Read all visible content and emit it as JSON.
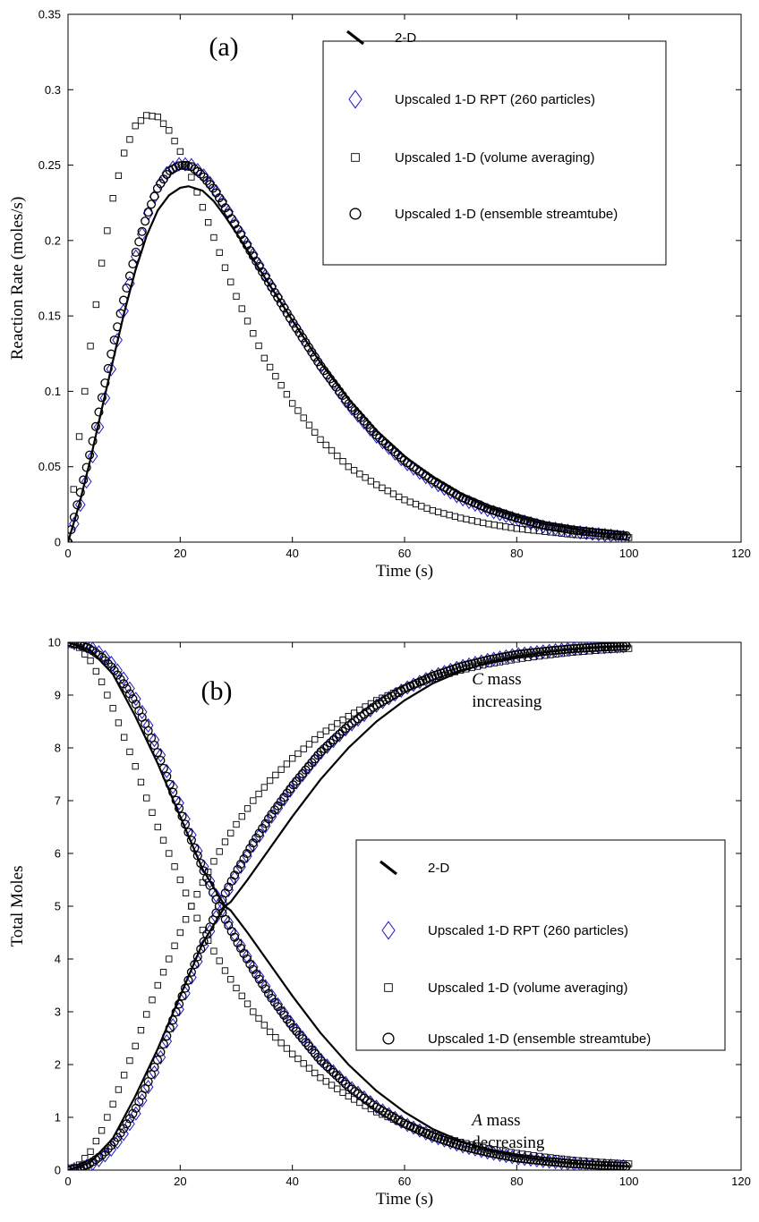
{
  "chart_data": [
    {
      "type": "line",
      "panel_label": "(a)",
      "xlabel": "Time (s)",
      "ylabel": "Reaction Rate (moles/s)",
      "xlim": [
        0,
        120
      ],
      "ylim": [
        0,
        0.35
      ],
      "xticks": [
        "0",
        "20",
        "40",
        "60",
        "80",
        "100",
        "120"
      ],
      "yticks": [
        "0",
        "0.05",
        "0.1",
        "0.15",
        "0.2",
        "0.25",
        "0.3",
        "0.35"
      ],
      "legend_position": "top-right",
      "series": [
        {
          "name": "2-D",
          "marker": "line",
          "color": "#000000",
          "x": [
            0,
            2,
            4,
            6,
            8,
            10,
            12,
            14,
            16,
            18,
            20,
            21.5,
            24,
            26,
            28,
            30,
            35,
            40,
            45,
            50,
            55,
            60,
            65,
            70,
            75,
            80,
            85,
            90,
            95,
            100
          ],
          "y": [
            0,
            0.025,
            0.055,
            0.088,
            0.12,
            0.152,
            0.18,
            0.203,
            0.22,
            0.23,
            0.235,
            0.236,
            0.233,
            0.226,
            0.216,
            0.205,
            0.176,
            0.147,
            0.119,
            0.095,
            0.074,
            0.057,
            0.043,
            0.032,
            0.023,
            0.017,
            0.012,
            0.009,
            0.006,
            0.005
          ]
        },
        {
          "name": "Upscaled 1-D RPT (260 particles)",
          "marker": "diamond",
          "color": "#1a1acc",
          "x": [
            0,
            2,
            4,
            6,
            8,
            10,
            12,
            14,
            16,
            18,
            20,
            22,
            24,
            26,
            28,
            30,
            35,
            40,
            45,
            50,
            55,
            60,
            65,
            70,
            75,
            80,
            85,
            90,
            95,
            100
          ],
          "y": [
            0,
            0.022,
            0.05,
            0.085,
            0.12,
            0.155,
            0.188,
            0.215,
            0.235,
            0.247,
            0.251,
            0.25,
            0.244,
            0.235,
            0.223,
            0.21,
            0.178,
            0.146,
            0.117,
            0.091,
            0.07,
            0.053,
            0.04,
            0.029,
            0.021,
            0.015,
            0.01,
            0.007,
            0.005,
            0.003
          ]
        },
        {
          "name": "Upscaled 1-D (volume averaging)",
          "marker": "square",
          "color": "#000000",
          "x": [
            0,
            2,
            4,
            6,
            8,
            10,
            12,
            14,
            16,
            18,
            20,
            22,
            24,
            26,
            28,
            30,
            35,
            40,
            45,
            50,
            55,
            60,
            65,
            70,
            75,
            80,
            85,
            90,
            95,
            100
          ],
          "y": [
            0,
            0.07,
            0.13,
            0.185,
            0.228,
            0.258,
            0.276,
            0.283,
            0.282,
            0.273,
            0.259,
            0.242,
            0.222,
            0.202,
            0.182,
            0.163,
            0.122,
            0.092,
            0.068,
            0.05,
            0.038,
            0.028,
            0.021,
            0.016,
            0.012,
            0.009,
            0.007,
            0.005,
            0.004,
            0.003
          ]
        },
        {
          "name": "Upscaled 1-D (ensemble streamtube)",
          "marker": "circle",
          "color": "#000000",
          "x": [
            0,
            2,
            4,
            6,
            8,
            10,
            12,
            14,
            16,
            18,
            20,
            22,
            24,
            26,
            28,
            30,
            35,
            40,
            45,
            50,
            55,
            60,
            65,
            70,
            75,
            80,
            85,
            90,
            95,
            100
          ],
          "y": [
            0,
            0.03,
            0.06,
            0.095,
            0.13,
            0.162,
            0.191,
            0.216,
            0.235,
            0.246,
            0.25,
            0.249,
            0.243,
            0.234,
            0.222,
            0.209,
            0.177,
            0.146,
            0.117,
            0.092,
            0.071,
            0.054,
            0.041,
            0.03,
            0.022,
            0.016,
            0.011,
            0.008,
            0.006,
            0.004
          ]
        }
      ]
    },
    {
      "type": "line",
      "panel_label": "(b)",
      "xlabel": "Time (s)",
      "ylabel": "Total Moles",
      "xlim": [
        0,
        120
      ],
      "ylim": [
        0,
        10
      ],
      "xticks": [
        "0",
        "20",
        "40",
        "60",
        "80",
        "100",
        "120"
      ],
      "yticks": [
        "0",
        "1",
        "2",
        "3",
        "4",
        "5",
        "6",
        "7",
        "8",
        "9",
        "10"
      ],
      "legend_position": "center-right",
      "annotations": [
        {
          "var": "C",
          "line1_rest": " mass",
          "line2": "increasing",
          "at": [
            72,
            9.2
          ]
        },
        {
          "var": "A",
          "line1_rest": " mass",
          "line2": "decreasing",
          "at": [
            72,
            0.85
          ]
        }
      ],
      "series": [
        {
          "name": "2-D",
          "marker": "line",
          "color": "#000000",
          "group": "decreasing",
          "x": [
            0,
            4,
            8,
            12,
            16,
            20,
            24,
            28,
            29,
            32,
            36,
            40,
            45,
            50,
            55,
            60,
            65,
            70,
            75,
            80,
            85,
            90,
            95,
            100
          ],
          "y": [
            10,
            9.85,
            9.4,
            8.6,
            7.7,
            6.7,
            5.7,
            5.0,
            4.92,
            4.5,
            3.9,
            3.3,
            2.6,
            2.0,
            1.5,
            1.1,
            0.78,
            0.55,
            0.38,
            0.27,
            0.19,
            0.13,
            0.09,
            0.07
          ]
        },
        {
          "name": "2-D",
          "marker": "line",
          "color": "#000000",
          "group": "increasing",
          "x": [
            0,
            4,
            8,
            12,
            16,
            20,
            24,
            28,
            29,
            32,
            36,
            40,
            45,
            50,
            55,
            60,
            65,
            70,
            75,
            80,
            85,
            90,
            95,
            100
          ],
          "y": [
            0,
            0.15,
            0.6,
            1.4,
            2.3,
            3.3,
            4.3,
            5.0,
            5.08,
            5.5,
            6.1,
            6.7,
            7.4,
            8.0,
            8.5,
            8.9,
            9.22,
            9.45,
            9.62,
            9.73,
            9.81,
            9.87,
            9.91,
            9.93
          ]
        },
        {
          "name": "Upscaled 1-D RPT (260 particles)",
          "marker": "diamond",
          "color": "#1a1acc",
          "group": "decreasing",
          "x": [
            0,
            2,
            4,
            6,
            8,
            10,
            12,
            14,
            16,
            18,
            20,
            22,
            24,
            26,
            28,
            30,
            33,
            36,
            40,
            45,
            50,
            55,
            60,
            65,
            70,
            75,
            80,
            85,
            90,
            95,
            100
          ],
          "y": [
            10,
            9.97,
            9.9,
            9.78,
            9.58,
            9.3,
            8.95,
            8.5,
            8.0,
            7.45,
            6.9,
            6.35,
            5.8,
            5.3,
            4.82,
            4.4,
            3.85,
            3.35,
            2.75,
            2.1,
            1.6,
            1.2,
            0.88,
            0.64,
            0.46,
            0.33,
            0.23,
            0.17,
            0.12,
            0.09,
            0.07
          ]
        },
        {
          "name": "Upscaled 1-D RPT (260 particles)",
          "marker": "diamond",
          "color": "#1a1acc",
          "group": "increasing",
          "x": [
            0,
            2,
            4,
            6,
            8,
            10,
            12,
            14,
            16,
            18,
            20,
            22,
            24,
            26,
            28,
            30,
            33,
            36,
            40,
            45,
            50,
            55,
            60,
            65,
            70,
            75,
            80,
            85,
            90,
            95,
            100
          ],
          "y": [
            0,
            0.03,
            0.1,
            0.22,
            0.42,
            0.7,
            1.05,
            1.5,
            2.0,
            2.55,
            3.1,
            3.65,
            4.2,
            4.7,
            5.18,
            5.6,
            6.15,
            6.65,
            7.25,
            7.9,
            8.4,
            8.8,
            9.12,
            9.36,
            9.54,
            9.67,
            9.77,
            9.83,
            9.88,
            9.91,
            9.93
          ]
        },
        {
          "name": "Upscaled 1-D (volume averaging)",
          "marker": "square",
          "color": "#000000",
          "group": "decreasing",
          "x": [
            0,
            2,
            4,
            6,
            8,
            10,
            12,
            14,
            16,
            18,
            20,
            22,
            24,
            26,
            28,
            30,
            33,
            36,
            40,
            45,
            50,
            55,
            60,
            65,
            70,
            75,
            80,
            85,
            90,
            95,
            100
          ],
          "y": [
            10,
            9.9,
            9.65,
            9.25,
            8.75,
            8.2,
            7.65,
            7.05,
            6.5,
            6.0,
            5.5,
            5.0,
            4.55,
            4.15,
            3.78,
            3.45,
            3.0,
            2.62,
            2.2,
            1.75,
            1.4,
            1.1,
            0.87,
            0.68,
            0.53,
            0.41,
            0.32,
            0.25,
            0.19,
            0.15,
            0.12
          ]
        },
        {
          "name": "Upscaled 1-D (volume averaging)",
          "marker": "square",
          "color": "#000000",
          "group": "increasing",
          "x": [
            0,
            2,
            4,
            6,
            8,
            10,
            12,
            14,
            16,
            18,
            20,
            22,
            24,
            26,
            28,
            30,
            33,
            36,
            40,
            45,
            50,
            55,
            60,
            65,
            70,
            75,
            80,
            85,
            90,
            95,
            100
          ],
          "y": [
            0,
            0.1,
            0.35,
            0.75,
            1.25,
            1.8,
            2.35,
            2.95,
            3.5,
            4.0,
            4.5,
            5.0,
            5.45,
            5.85,
            6.22,
            6.55,
            7.0,
            7.38,
            7.8,
            8.25,
            8.6,
            8.9,
            9.13,
            9.32,
            9.47,
            9.59,
            9.68,
            9.75,
            9.81,
            9.85,
            9.88
          ]
        },
        {
          "name": "Upscaled 1-D (ensemble streamtube)",
          "marker": "circle",
          "color": "#000000",
          "group": "decreasing",
          "x": [
            0,
            2,
            4,
            6,
            8,
            10,
            12,
            14,
            16,
            18,
            20,
            22,
            24,
            26,
            28,
            30,
            33,
            36,
            40,
            45,
            50,
            55,
            60,
            65,
            70,
            75,
            80,
            85,
            90,
            95,
            100
          ],
          "y": [
            10,
            9.96,
            9.87,
            9.72,
            9.5,
            9.2,
            8.85,
            8.4,
            7.9,
            7.35,
            6.8,
            6.25,
            5.72,
            5.22,
            4.76,
            4.35,
            3.8,
            3.3,
            2.72,
            2.08,
            1.58,
            1.19,
            0.88,
            0.64,
            0.46,
            0.33,
            0.23,
            0.17,
            0.12,
            0.09,
            0.07
          ]
        },
        {
          "name": "Upscaled 1-D (ensemble streamtube)",
          "marker": "circle",
          "color": "#000000",
          "group": "increasing",
          "x": [
            0,
            2,
            4,
            6,
            8,
            10,
            12,
            14,
            16,
            18,
            20,
            22,
            24,
            26,
            28,
            30,
            33,
            36,
            40,
            45,
            50,
            55,
            60,
            65,
            70,
            75,
            80,
            85,
            90,
            95,
            100
          ],
          "y": [
            0,
            0.04,
            0.13,
            0.28,
            0.5,
            0.8,
            1.15,
            1.6,
            2.1,
            2.65,
            3.2,
            3.75,
            4.28,
            4.78,
            5.24,
            5.65,
            6.2,
            6.7,
            7.28,
            7.92,
            8.42,
            8.81,
            9.12,
            9.36,
            9.54,
            9.67,
            9.77,
            9.83,
            9.88,
            9.91,
            9.93
          ]
        }
      ]
    }
  ]
}
